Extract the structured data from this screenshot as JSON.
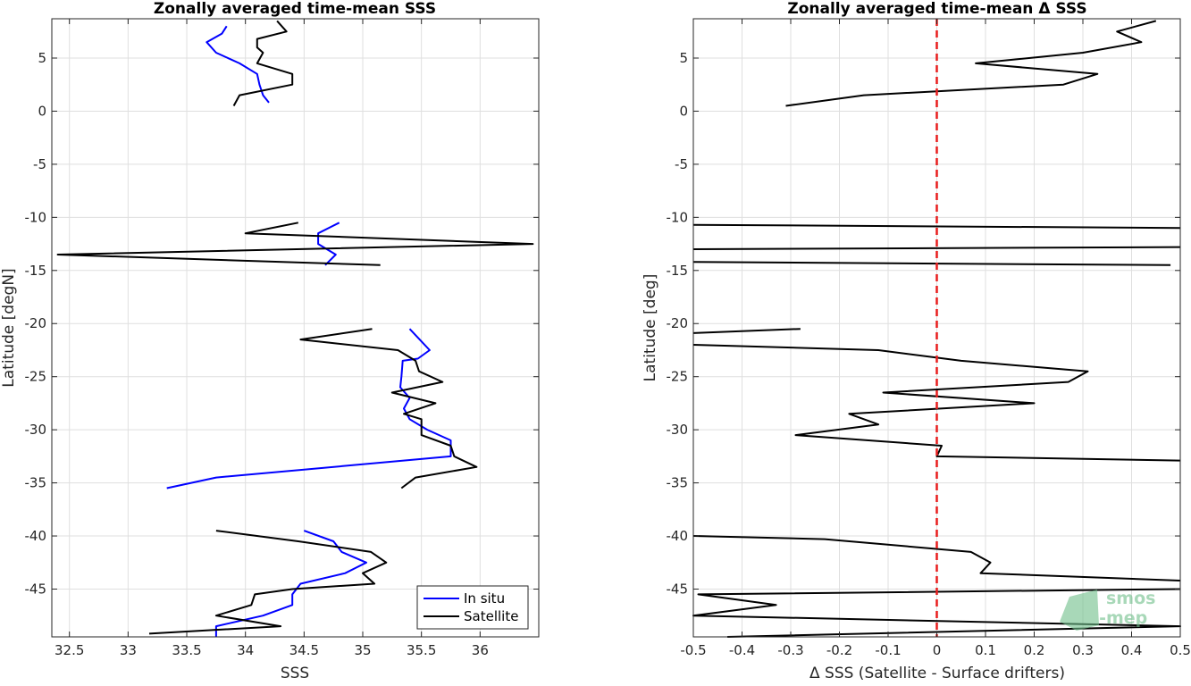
{
  "chart_data": [
    {
      "type": "line",
      "title": "Zonally averaged time-mean SSS",
      "xlabel": "SSS",
      "ylabel": "Latitude [degN]",
      "xlim": [
        32.35,
        36.5
      ],
      "ylim": [
        -49.5,
        8.7
      ],
      "x_ticks": [
        "32.5",
        "33",
        "33.5",
        "34",
        "34.5",
        "35",
        "35.5",
        "36"
      ],
      "y_ticks": [
        "5",
        "0",
        "-5",
        "-10",
        "-15",
        "-20",
        "-25",
        "-30",
        "-35",
        "-40",
        "-45"
      ],
      "grid": true,
      "legend": {
        "placement": "bottom-right",
        "entries": [
          "In situ",
          "Satellite"
        ]
      },
      "series": [
        {
          "name": "In situ",
          "color": "#0000ff",
          "segments": [
            [
              [
                33.84,
                8.0
              ],
              [
                33.8,
                7.3
              ],
              [
                33.67,
                6.5
              ],
              [
                33.75,
                5.5
              ],
              [
                33.95,
                4.5
              ],
              [
                34.1,
                3.5
              ],
              [
                34.12,
                2.5
              ],
              [
                34.15,
                1.5
              ],
              [
                34.2,
                0.8
              ]
            ],
            [
              [
                34.8,
                -10.5
              ],
              [
                34.62,
                -11.5
              ],
              [
                34.62,
                -12.5
              ],
              [
                34.77,
                -13.5
              ],
              [
                34.68,
                -14.5
              ]
            ],
            [
              [
                35.4,
                -20.5
              ],
              [
                35.57,
                -22.5
              ],
              [
                35.47,
                -23.3
              ],
              [
                35.34,
                -23.5
              ],
              [
                35.33,
                -25.0
              ],
              [
                35.32,
                -26.0
              ],
              [
                35.4,
                -27.0
              ],
              [
                35.35,
                -28.0
              ],
              [
                35.4,
                -29.0
              ],
              [
                35.55,
                -30.0
              ],
              [
                35.75,
                -31.0
              ],
              [
                35.75,
                -32.5
              ],
              [
                33.75,
                -34.5
              ],
              [
                33.33,
                -35.5
              ]
            ],
            [
              [
                34.5,
                -39.5
              ],
              [
                34.75,
                -40.5
              ],
              [
                34.82,
                -41.5
              ],
              [
                35.03,
                -42.5
              ],
              [
                34.85,
                -43.5
              ],
              [
                34.47,
                -44.5
              ],
              [
                34.4,
                -45.5
              ],
              [
                34.4,
                -46.5
              ],
              [
                34.15,
                -47.5
              ],
              [
                33.75,
                -48.5
              ],
              [
                33.75,
                -49.5
              ]
            ]
          ]
        },
        {
          "name": "Satellite",
          "color": "#000000",
          "segments": [
            [
              [
                34.27,
                8.5
              ],
              [
                34.35,
                7.5
              ],
              [
                34.1,
                6.8
              ],
              [
                34.1,
                6.0
              ],
              [
                34.15,
                5.5
              ],
              [
                34.1,
                4.5
              ],
              [
                34.4,
                3.5
              ],
              [
                34.4,
                2.5
              ],
              [
                33.95,
                1.5
              ],
              [
                33.9,
                0.5
              ]
            ],
            [
              [
                34.45,
                -10.5
              ],
              [
                34.0,
                -11.5
              ],
              [
                36.45,
                -12.5
              ],
              [
                32.4,
                -13.5
              ],
              [
                35.15,
                -14.5
              ]
            ],
            [
              [
                35.08,
                -20.5
              ],
              [
                34.47,
                -21.5
              ],
              [
                35.3,
                -22.5
              ],
              [
                35.45,
                -23.5
              ],
              [
                35.48,
                -24.5
              ],
              [
                35.68,
                -25.5
              ],
              [
                35.25,
                -26.5
              ],
              [
                35.62,
                -27.5
              ],
              [
                35.35,
                -28.5
              ],
              [
                35.5,
                -29.0
              ],
              [
                35.5,
                -30.5
              ],
              [
                35.75,
                -31.5
              ],
              [
                35.78,
                -32.5
              ],
              [
                35.97,
                -33.5
              ],
              [
                35.45,
                -34.5
              ],
              [
                35.33,
                -35.5
              ]
            ],
            [
              [
                33.75,
                -39.5
              ],
              [
                34.45,
                -40.5
              ],
              [
                35.07,
                -41.5
              ],
              [
                35.2,
                -42.5
              ],
              [
                35.0,
                -43.5
              ],
              [
                35.1,
                -44.5
              ],
              [
                34.4,
                -45.0
              ],
              [
                34.08,
                -45.5
              ],
              [
                34.05,
                -46.5
              ],
              [
                33.75,
                -47.5
              ],
              [
                34.3,
                -48.5
              ],
              [
                33.18,
                -49.2
              ]
            ]
          ]
        }
      ]
    },
    {
      "type": "line",
      "title": "Zonally averaged time-mean Δ SSS",
      "xlabel": "Δ SSS (Satellite - Surface drifters)",
      "ylabel": "Latitude [deg]",
      "xlim": [
        -0.5,
        0.5
      ],
      "ylim": [
        -49.5,
        8.7
      ],
      "x_ticks": [
        "-0.5",
        "-0.4",
        "-0.3",
        "-0.2",
        "-0.1",
        "0",
        "0.1",
        "0.2",
        "0.3",
        "0.4",
        "0.5"
      ],
      "y_ticks": [
        "5",
        "0",
        "-5",
        "-10",
        "-15",
        "-20",
        "-25",
        "-30",
        "-35",
        "-40",
        "-45"
      ],
      "grid": true,
      "reference_line": {
        "x": 0,
        "color": "#e81e1e",
        "style": "dashed"
      },
      "series": [
        {
          "color": "#000000",
          "segments": [
            [
              [
                0.45,
                8.5
              ],
              [
                0.37,
                7.5
              ],
              [
                0.42,
                6.5
              ],
              [
                0.3,
                5.5
              ],
              [
                0.08,
                4.5
              ],
              [
                0.33,
                3.5
              ],
              [
                0.26,
                2.5
              ],
              [
                -0.15,
                1.5
              ],
              [
                -0.31,
                0.5
              ]
            ],
            [
              [
                -0.5,
                -10.7
              ],
              [
                0.5,
                -11.0
              ]
            ],
            [
              [
                -0.5,
                -13.0
              ],
              [
                0.5,
                -12.8
              ]
            ],
            [
              [
                -0.5,
                -14.2
              ],
              [
                0.48,
                -14.5
              ]
            ],
            [
              [
                -0.28,
                -20.5
              ],
              [
                -0.5,
                -20.9
              ]
            ],
            [
              [
                -0.5,
                -22.0
              ],
              [
                -0.12,
                -22.5
              ],
              [
                0.05,
                -23.5
              ],
              [
                0.31,
                -24.5
              ],
              [
                0.27,
                -25.5
              ],
              [
                -0.11,
                -26.5
              ],
              [
                0.2,
                -27.5
              ],
              [
                -0.18,
                -28.5
              ],
              [
                -0.12,
                -29.5
              ],
              [
                -0.29,
                -30.5
              ],
              [
                0.01,
                -31.5
              ],
              [
                0.0,
                -32.5
              ],
              [
                0.5,
                -32.9
              ]
            ],
            [
              [
                -0.5,
                -40.0
              ],
              [
                -0.23,
                -40.3
              ],
              [
                0.07,
                -41.5
              ],
              [
                0.11,
                -42.5
              ],
              [
                0.09,
                -43.5
              ],
              [
                0.5,
                -44.2
              ]
            ],
            [
              [
                0.5,
                -45.0
              ],
              [
                -0.49,
                -45.5
              ],
              [
                -0.33,
                -46.5
              ],
              [
                -0.5,
                -47.5
              ],
              [
                0.5,
                -48.5
              ],
              [
                -0.43,
                -49.5
              ]
            ]
          ]
        }
      ]
    }
  ],
  "logo": {
    "line1": "smos",
    "line2": "pi-mep",
    "color": "#6fbf8a"
  }
}
